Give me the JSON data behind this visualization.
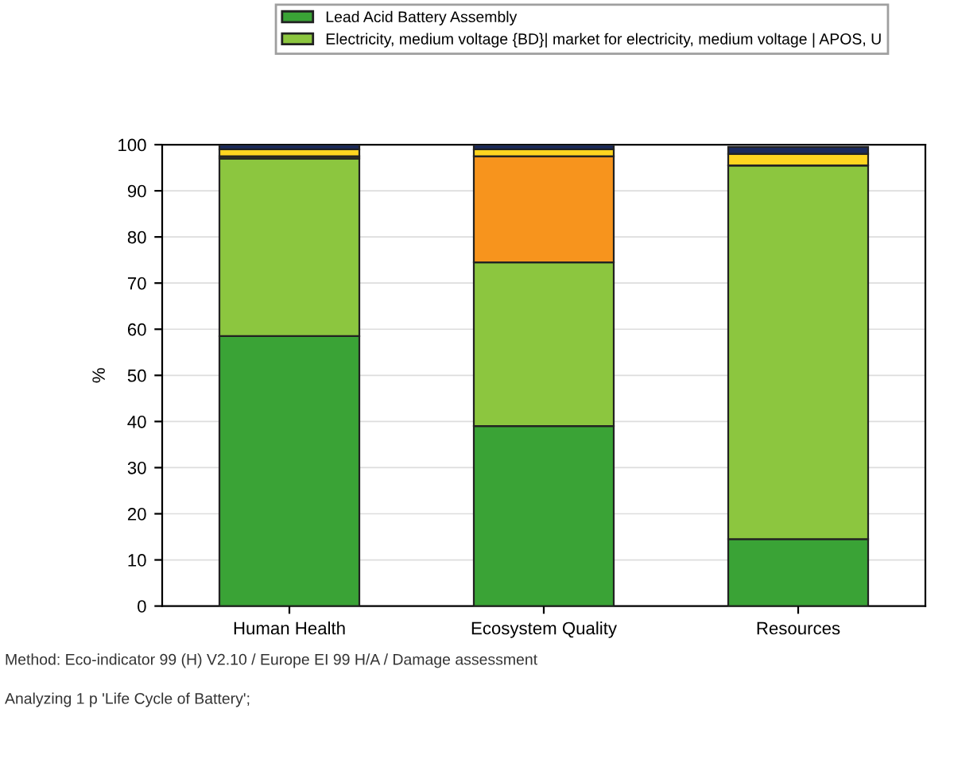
{
  "chart_data": {
    "type": "bar",
    "stacked": true,
    "ylabel": "%",
    "categories": [
      "Human Health",
      "Ecosystem Quality",
      "Resources"
    ],
    "series": [
      {
        "name": "Lead Acid Battery Assembly",
        "color": "#3aa336",
        "values": [
          58.5,
          39,
          14.5
        ]
      },
      {
        "name": "Electricity, medium voltage {BD}| market for electricity, medium voltage | APOS, U",
        "color": "#8cc63f",
        "values": [
          38.5,
          35.5,
          81
        ]
      },
      {
        "color": "#f7941d",
        "values": [
          0,
          23,
          0
        ]
      },
      {
        "color": "#5a5a1e",
        "values": [
          0.5,
          0,
          0
        ]
      },
      {
        "color": "#ffd520",
        "values": [
          1.5,
          1.5,
          2.5
        ]
      },
      {
        "color": "#1b2a5c",
        "values": [
          1,
          1,
          1.5
        ]
      }
    ],
    "ylim": [
      0,
      100
    ],
    "yticks": [
      0,
      10,
      20,
      30,
      40,
      50,
      60,
      70,
      80,
      90,
      100
    ],
    "grid": "y",
    "legend": "top",
    "annotations": [
      "Method: Eco-indicator 99 (H) V2.10 / Europe EI 99 H/A / Damage assessment",
      "Analyzing 1 p 'Life Cycle of Battery';"
    ]
  }
}
